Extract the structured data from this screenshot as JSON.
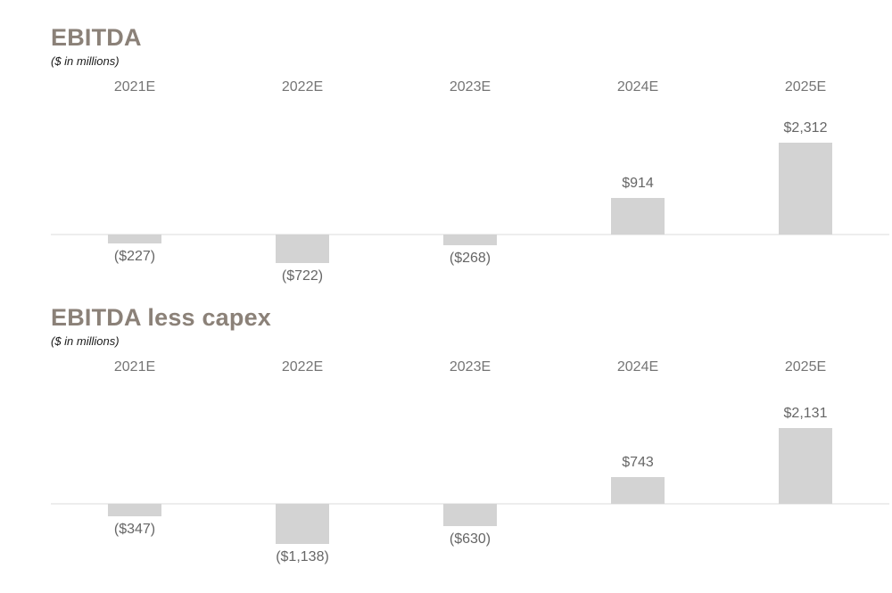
{
  "colors": {
    "title": "#8b8178",
    "bar": "#d3d3d3",
    "axis_line": "#ededed",
    "category_label": "#757575",
    "value_label": "#666666",
    "subtitle": "#1a1a1a",
    "background": "#ffffff"
  },
  "chart_data": [
    {
      "type": "bar",
      "title": "EBITDA",
      "subtitle": "($ in millions)",
      "xlabel": "",
      "ylabel": "",
      "categories": [
        "2021E",
        "2022E",
        "2023E",
        "2024E",
        "2025E"
      ],
      "values": [
        -227,
        -722,
        -268,
        914,
        2312
      ],
      "data_labels": [
        "($227)",
        "($722)",
        "($268)",
        "$914",
        "$2,312"
      ],
      "units": "USD millions",
      "grid": "off",
      "legend": "none",
      "axis": "zero-baseline, no ticks, negative bars hang below baseline"
    },
    {
      "type": "bar",
      "title": "EBITDA less capex",
      "subtitle": "($ in millions)",
      "xlabel": "",
      "ylabel": "",
      "categories": [
        "2021E",
        "2022E",
        "2023E",
        "2024E",
        "2025E"
      ],
      "values": [
        -347,
        -1138,
        -630,
        743,
        2131
      ],
      "data_labels": [
        "($347)",
        "($1,138)",
        "($630)",
        "$743",
        "$2,131"
      ],
      "units": "USD millions",
      "grid": "off",
      "legend": "none",
      "axis": "zero-baseline, no ticks, negative bars hang below baseline"
    }
  ]
}
